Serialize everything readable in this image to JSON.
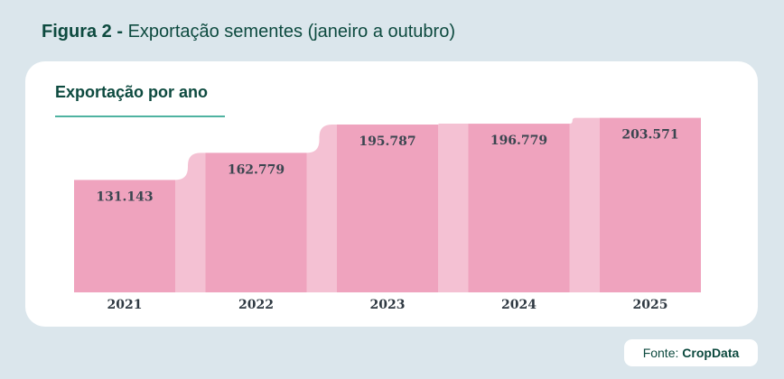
{
  "figure": {
    "label": "Figura 2 -",
    "title": "Exportação sementes (janeiro a outubro)"
  },
  "chart_data": {
    "type": "bar",
    "title": "Exportação por ano",
    "categories": [
      "2021",
      "2022",
      "2023",
      "2024",
      "2025"
    ],
    "values": [
      131143,
      162779,
      195787,
      196779,
      203571
    ],
    "value_labels": [
      "131.143",
      "162.779",
      "195.787",
      "196.779",
      "203.571"
    ],
    "ylim": [
      0,
      203571
    ],
    "grid": false,
    "colors": {
      "bar": "#efa3be",
      "connector": "#f4c1d3"
    }
  },
  "source": {
    "prefix": "Fonte:",
    "name": "CropData"
  }
}
